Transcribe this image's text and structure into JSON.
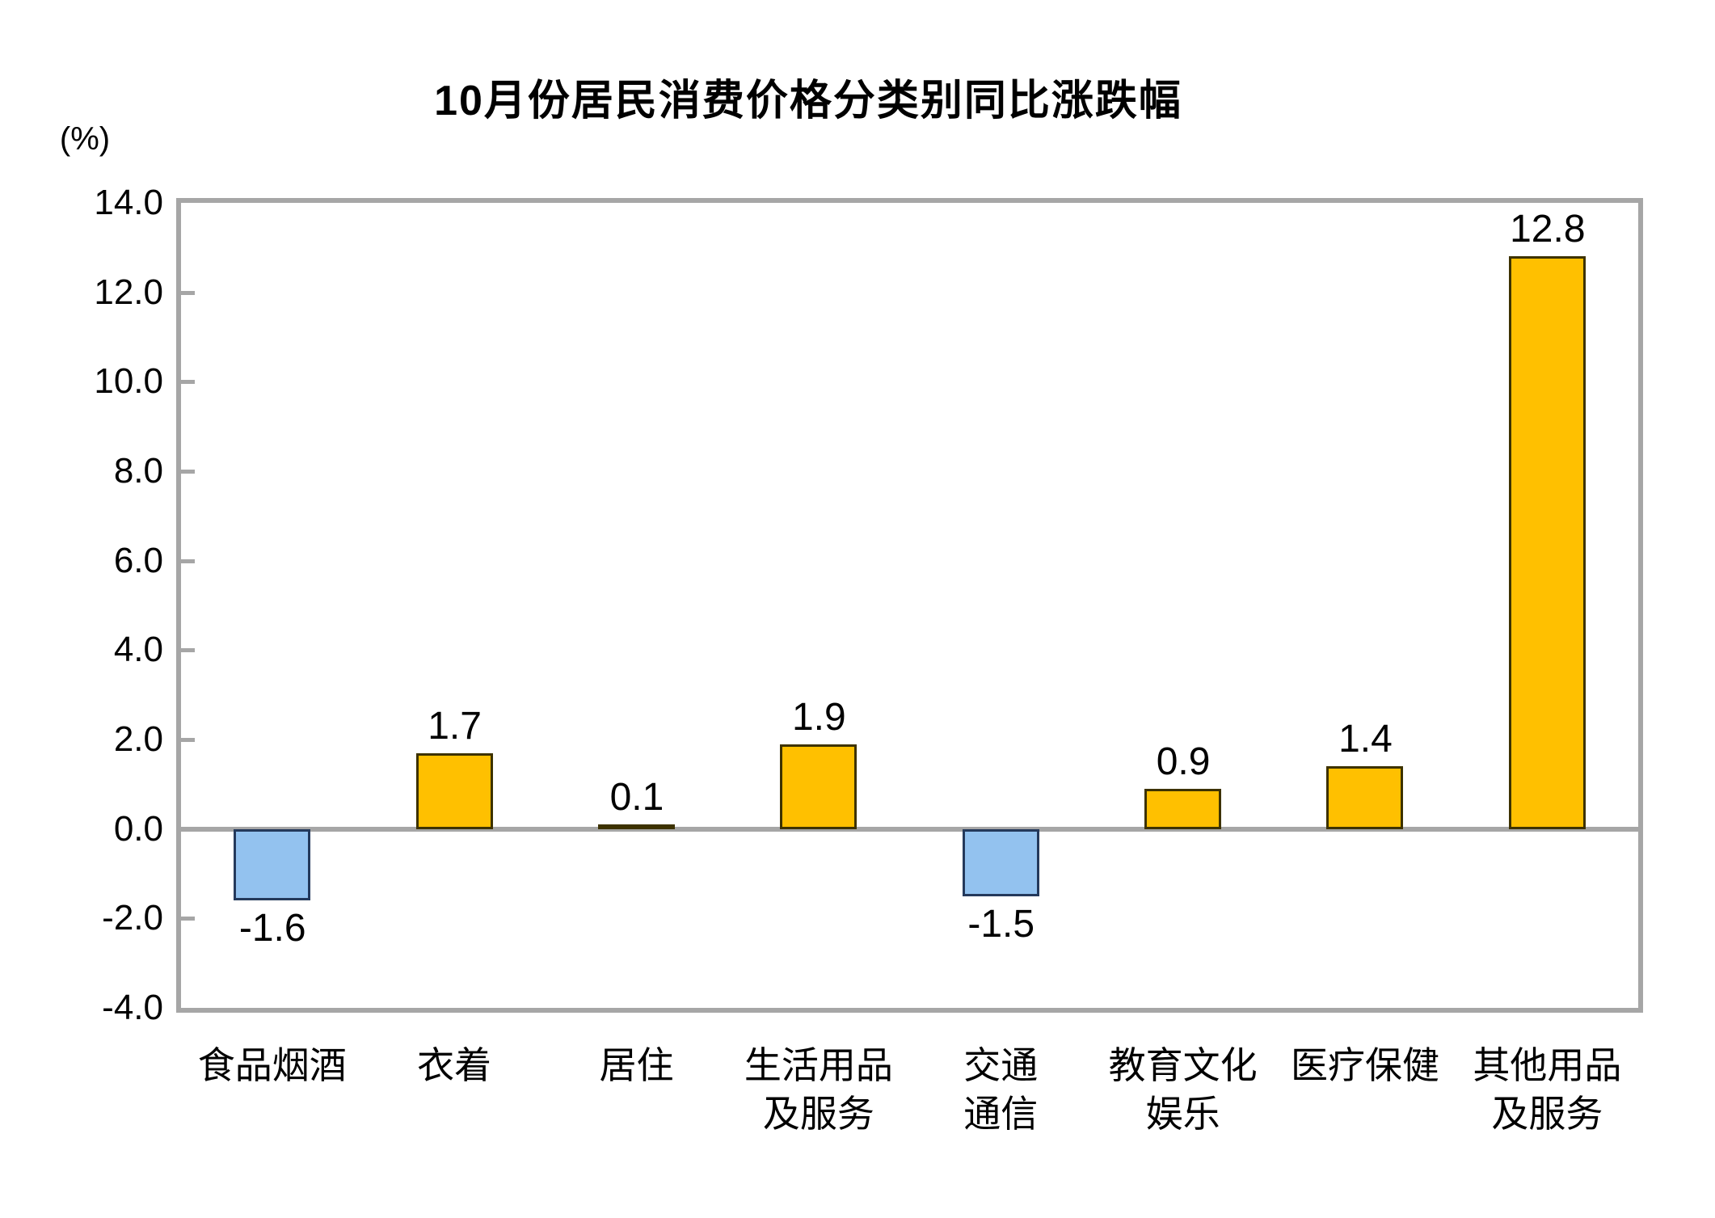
{
  "chart": {
    "title": "10月份居民消费价格分类别同比涨跌幅",
    "unit_label": "(%)"
  },
  "chart_data": {
    "type": "bar",
    "title": "10月份居民消费价格分类别同比涨跌幅",
    "ylabel": "(%)",
    "xlabel": "",
    "ylim": [
      -4.0,
      14.0
    ],
    "ytick_step": 2.0,
    "grid": false,
    "legend": "none",
    "categories": [
      "食品烟酒",
      "衣着",
      "居住",
      "生活用品及服务",
      "交通通信",
      "教育文化娱乐",
      "医疗保健",
      "其他用品及服务"
    ],
    "category_lines": [
      [
        "食品烟酒"
      ],
      [
        "衣着"
      ],
      [
        "居住"
      ],
      [
        "生活用品",
        "及服务"
      ],
      [
        "交通",
        "通信"
      ],
      [
        "教育文化",
        "娱乐"
      ],
      [
        "医疗保健"
      ],
      [
        "其他用品",
        "及服务"
      ]
    ],
    "values": [
      -1.6,
      1.7,
      0.1,
      1.9,
      -1.5,
      0.9,
      1.4,
      12.8
    ],
    "value_labels": [
      "-1.6",
      "1.7",
      "0.1",
      "1.9",
      "-1.5",
      "0.9",
      "1.4",
      "12.8"
    ],
    "ytick_labels": [
      "14.0",
      "12.0",
      "10.0",
      "8.0",
      "6.0",
      "4.0",
      "2.0",
      "0.0",
      "-2.0",
      "-4.0"
    ],
    "ytick_values": [
      14.0,
      12.0,
      10.0,
      8.0,
      6.0,
      4.0,
      2.0,
      0.0,
      -2.0,
      -4.0
    ],
    "colors": {
      "positive_fill": "#FFC000",
      "positive_border": "#3D3200",
      "negative_fill": "#93C2EF",
      "negative_border": "#24395B",
      "axis_gray": "#A6A6A6",
      "text": "#000000"
    }
  }
}
